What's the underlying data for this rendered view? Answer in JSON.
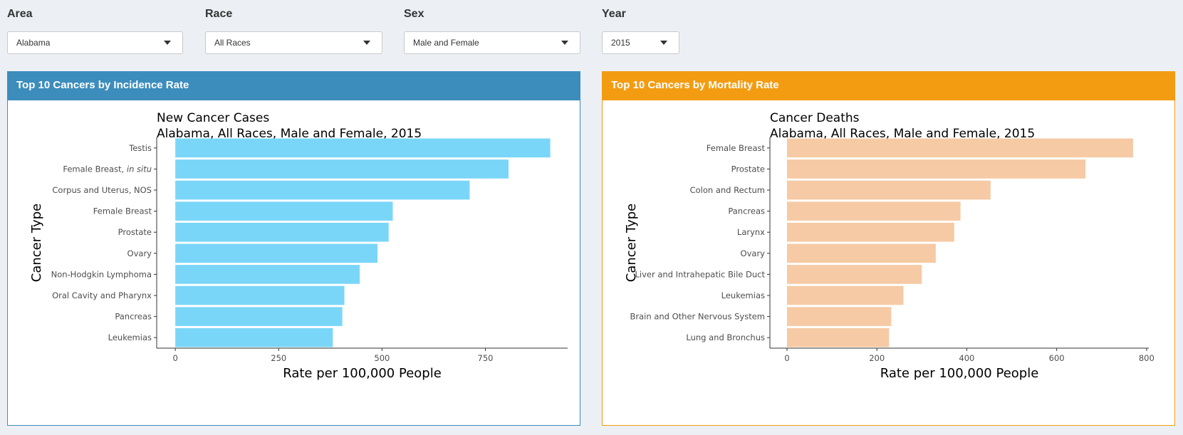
{
  "filters": [
    {
      "label": "Area",
      "value": "Alabama"
    },
    {
      "label": "Race",
      "value": "All Races"
    },
    {
      "label": "Sex",
      "value": "Male and Female"
    },
    {
      "label": "Year",
      "value": "2015"
    }
  ],
  "panels": {
    "incidence": {
      "header": "Top 10 Cancers by Incidence Rate",
      "color": "#3c8dbc"
    },
    "mortality": {
      "header": "Top 10 Cancers by Mortality Rate",
      "color": "#f39c12"
    }
  },
  "chart_data": [
    {
      "type": "bar",
      "orientation": "horizontal",
      "title": "New Cancer Cases",
      "subtitle": "Alabama, All Races, Male and Female, 2015",
      "xlabel": "Rate per 100,000 People",
      "ylabel": "Cancer Type",
      "categories": [
        "Testis",
        "Female Breast, in situ",
        "Corpus and Uterus, NOS",
        "Female Breast",
        "Prostate",
        "Ovary",
        "Non-Hodgkin Lymphoma",
        "Oral Cavity and Pharynx",
        "Pancreas",
        "Leukemias"
      ],
      "values": [
        907,
        806,
        712,
        526,
        516,
        489,
        446,
        409,
        404,
        381
      ],
      "xlim": [
        -45,
        949
      ],
      "xticks": [
        0,
        250,
        500,
        750
      ],
      "bar_color": "#7ad6f8",
      "grid": false
    },
    {
      "type": "bar",
      "orientation": "horizontal",
      "title": "Cancer Deaths",
      "subtitle": "Alabama, All Races, Male and Female, 2015",
      "xlabel": "Rate per 100,000 People",
      "ylabel": "Cancer Type",
      "categories": [
        "Female Breast",
        "Prostate",
        "Colon and Rectum",
        "Pancreas",
        "Larynx",
        "Ovary",
        "Liver and Intrahepatic Bile Duct",
        "Leukemias",
        "Brain and Other Nervous System",
        "Lung and Bronchus"
      ],
      "values": [
        770,
        664,
        453,
        386,
        372,
        331,
        300,
        259,
        232,
        227
      ],
      "xlim": [
        -38,
        805
      ],
      "xticks": [
        0,
        200,
        400,
        600,
        800
      ],
      "bar_color": "#f6caa4",
      "grid": false
    }
  ]
}
